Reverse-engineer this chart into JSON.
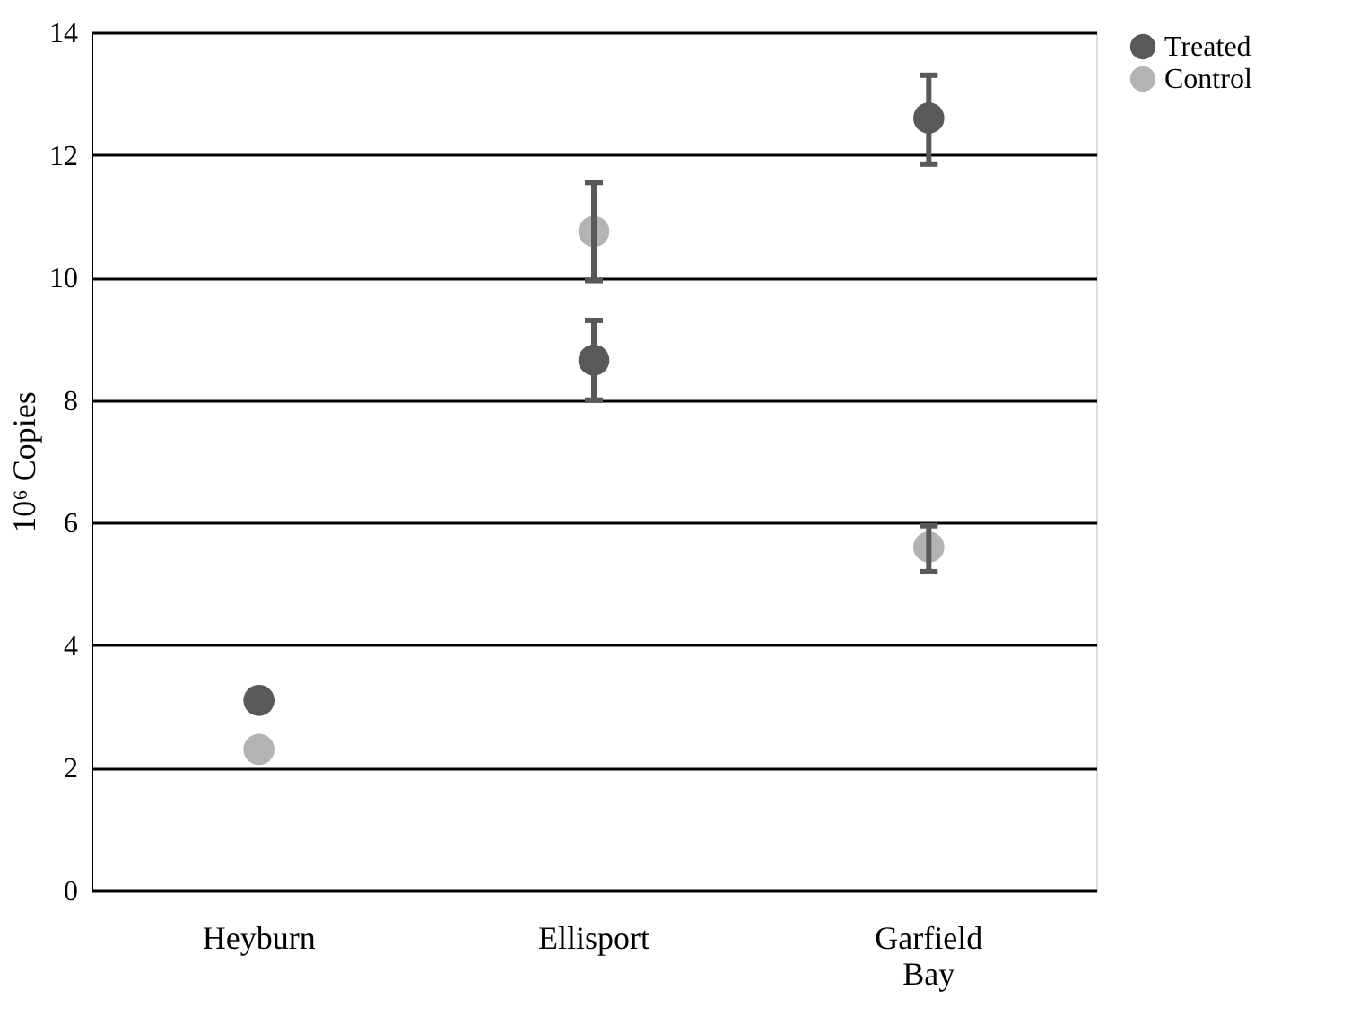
{
  "chart_data": {
    "type": "scatter",
    "ylabel": "10⁶ Copies",
    "categories": [
      "Heyburn",
      "Ellisport",
      "Garfield Bay"
    ],
    "series": [
      {
        "name": "Treated",
        "color": "#595959",
        "values": [
          3.1,
          8.65,
          12.6
        ],
        "errors": [
          null,
          [
            8.0,
            9.3
          ],
          [
            11.85,
            13.3
          ]
        ]
      },
      {
        "name": "Control",
        "color": "#b3b3b3",
        "values": [
          2.3,
          10.75,
          5.6
        ],
        "errors": [
          null,
          [
            9.95,
            11.55
          ],
          [
            5.2,
            5.95
          ]
        ]
      }
    ],
    "ylim": [
      0,
      14
    ],
    "yticks": [
      0,
      2,
      4,
      6,
      8,
      10,
      12,
      14
    ],
    "grid": "y",
    "legend": "right",
    "marker": "circle"
  }
}
